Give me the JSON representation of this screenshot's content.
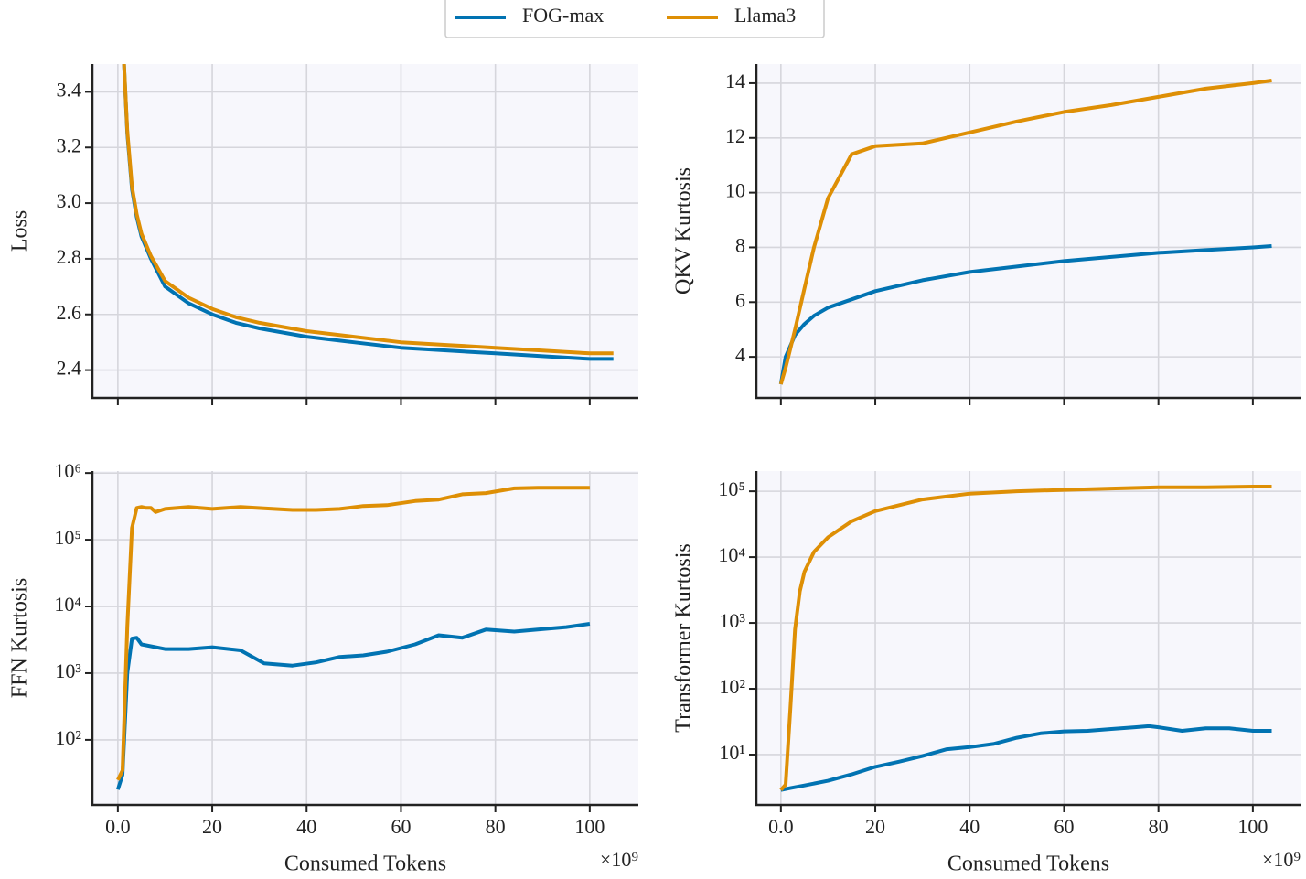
{
  "chart_data": [
    {
      "type": "line",
      "ylabel": "Loss",
      "xlim": [
        -5.4,
        110.3
      ],
      "ylim": [
        2.3,
        3.5
      ],
      "xticks": [
        {
          "value": 0,
          "label": "0.0"
        },
        20,
        40,
        60,
        80,
        100
      ],
      "show_xtick_labels": false,
      "yticks": [
        2.4,
        2.6,
        2.8,
        {
          "value": 3.0,
          "label": "3.0"
        },
        3.2,
        3.4
      ],
      "grid": true,
      "legend": "upper center",
      "series": [
        {
          "name": "FOG-max",
          "color": "#0173b2",
          "x": [
            1.3,
            2,
            3,
            4,
            5,
            7,
            10,
            15,
            20,
            25,
            30,
            40,
            50,
            60,
            70,
            80,
            90,
            100,
            105
          ],
          "values": [
            3.5,
            3.25,
            3.05,
            2.95,
            2.88,
            2.8,
            2.7,
            2.64,
            2.6,
            2.57,
            2.55,
            2.52,
            2.5,
            2.48,
            2.47,
            2.46,
            2.45,
            2.44,
            2.44
          ]
        },
        {
          "name": "Llama3",
          "color": "#de8f05",
          "x": [
            1.3,
            2,
            3,
            4,
            5,
            7,
            10,
            15,
            20,
            25,
            30,
            40,
            50,
            60,
            70,
            80,
            90,
            100,
            105
          ],
          "values": [
            3.5,
            3.26,
            3.06,
            2.96,
            2.89,
            2.81,
            2.72,
            2.66,
            2.62,
            2.59,
            2.57,
            2.54,
            2.52,
            2.5,
            2.49,
            2.48,
            2.47,
            2.46,
            2.46
          ]
        }
      ]
    },
    {
      "type": "line",
      "ylabel": "QKV Kurtosis",
      "xlim": [
        -5.2,
        110.1
      ],
      "ylim": [
        2.5,
        14.7
      ],
      "xticks": [
        {
          "value": 0,
          "label": "0.0"
        },
        20,
        40,
        60,
        80,
        100
      ],
      "show_xtick_labels": false,
      "yticks": [
        4,
        6,
        8,
        10,
        12,
        14
      ],
      "grid": true,
      "series": [
        {
          "name": "FOG-max",
          "color": "#0173b2",
          "x": [
            0,
            1,
            2,
            3,
            5,
            7,
            10,
            15,
            20,
            30,
            40,
            50,
            60,
            70,
            80,
            90,
            100,
            104
          ],
          "values": [
            3,
            4,
            4.4,
            4.8,
            5.2,
            5.5,
            5.8,
            6.1,
            6.4,
            6.8,
            7.1,
            7.3,
            7.5,
            7.65,
            7.8,
            7.9,
            8,
            8.05
          ]
        },
        {
          "name": "Llama3",
          "color": "#de8f05",
          "x": [
            0,
            1,
            2,
            3,
            5,
            7,
            10,
            15,
            20,
            30,
            40,
            50,
            60,
            70,
            80,
            90,
            100,
            104
          ],
          "values": [
            3,
            3.6,
            4.3,
            5,
            6.5,
            8,
            9.8,
            11.4,
            11.7,
            11.8,
            12.2,
            12.6,
            12.95,
            13.2,
            13.5,
            13.8,
            14,
            14.1
          ]
        }
      ]
    },
    {
      "type": "line",
      "ylabel": "FFN Kurtosis",
      "xlabel": "Consumed Tokens",
      "x_offset_label": "×10⁹",
      "xlim": [
        -5.4,
        110.3
      ],
      "ylim": [
        10.6,
        1070000
      ],
      "yscale": "log",
      "xticks": [
        {
          "value": 0,
          "label": "0.0"
        },
        20,
        40,
        60,
        80,
        100
      ],
      "show_xtick_labels": true,
      "yticks": [
        {
          "value": 100,
          "label": "10²"
        },
        {
          "value": 1000,
          "label": "10³"
        },
        {
          "value": 10000,
          "label": "10⁴"
        },
        {
          "value": 100000,
          "label": "10⁵"
        },
        {
          "value": 1000000,
          "label": "10⁶"
        }
      ],
      "grid": true,
      "series": [
        {
          "name": "FOG-max",
          "color": "#0173b2",
          "x": [
            0,
            1,
            2,
            3,
            4,
            5,
            10,
            15,
            20,
            26,
            31,
            37,
            42,
            47,
            52,
            57,
            63,
            68,
            73,
            78,
            84,
            89,
            95,
            100
          ],
          "values": [
            18,
            30,
            1000,
            3300,
            3400,
            2700,
            2300,
            2300,
            2450,
            2200,
            1400,
            1300,
            1450,
            1750,
            1850,
            2100,
            2700,
            3700,
            3400,
            4500,
            4200,
            4500,
            4900,
            5500
          ]
        },
        {
          "name": "Llama3",
          "color": "#de8f05",
          "x": [
            0,
            1,
            2,
            3,
            4,
            5,
            6,
            7,
            8,
            10,
            15,
            20,
            26,
            31,
            37,
            42,
            47,
            52,
            57,
            63,
            68,
            73,
            78,
            84,
            89,
            95,
            100
          ],
          "values": [
            25,
            35,
            5000,
            150000,
            300000,
            310000,
            300000,
            300000,
            260000,
            290000,
            310000,
            290000,
            310000,
            295000,
            280000,
            280000,
            290000,
            320000,
            330000,
            380000,
            400000,
            480000,
            500000,
            590000,
            600000,
            600000,
            600000
          ]
        }
      ]
    },
    {
      "type": "line",
      "ylabel": "Transformer Kurtosis",
      "xlabel": "Consumed Tokens",
      "x_offset_label": "×10⁹",
      "xlim": [
        -5.2,
        110.1
      ],
      "ylim": [
        1.72,
        203000
      ],
      "yscale": "log",
      "xticks": [
        {
          "value": 0,
          "label": "0.0"
        },
        20,
        40,
        60,
        80,
        100
      ],
      "show_xtick_labels": true,
      "yticks": [
        {
          "value": 10,
          "label": "10¹"
        },
        {
          "value": 100,
          "label": "10²"
        },
        {
          "value": 1000,
          "label": "10³"
        },
        {
          "value": 10000,
          "label": "10⁴"
        },
        {
          "value": 100000,
          "label": "10⁵"
        }
      ],
      "grid": true,
      "series": [
        {
          "name": "FOG-max",
          "color": "#0173b2",
          "x": [
            0,
            2,
            5,
            10,
            15,
            20,
            25,
            30,
            35,
            40,
            45,
            50,
            55,
            60,
            65,
            70,
            75,
            78,
            80,
            85,
            90,
            95,
            100,
            104
          ],
          "values": [
            2.9,
            3.1,
            3.4,
            4,
            5,
            6.5,
            7.8,
            9.5,
            12,
            13,
            14.5,
            18,
            21,
            22.5,
            23,
            24.5,
            26,
            27,
            26,
            23,
            25,
            25,
            23,
            23
          ]
        },
        {
          "name": "Llama3",
          "color": "#de8f05",
          "x": [
            0,
            1,
            2,
            3,
            4,
            5,
            7,
            10,
            15,
            20,
            30,
            40,
            50,
            60,
            70,
            80,
            90,
            100,
            104
          ],
          "values": [
            2.9,
            3.5,
            50,
            800,
            3000,
            6000,
            12000,
            20000,
            35000,
            50000,
            75000,
            92000,
            100000,
            105000,
            110000,
            115000,
            115000,
            118000,
            118000
          ]
        }
      ]
    }
  ]
}
